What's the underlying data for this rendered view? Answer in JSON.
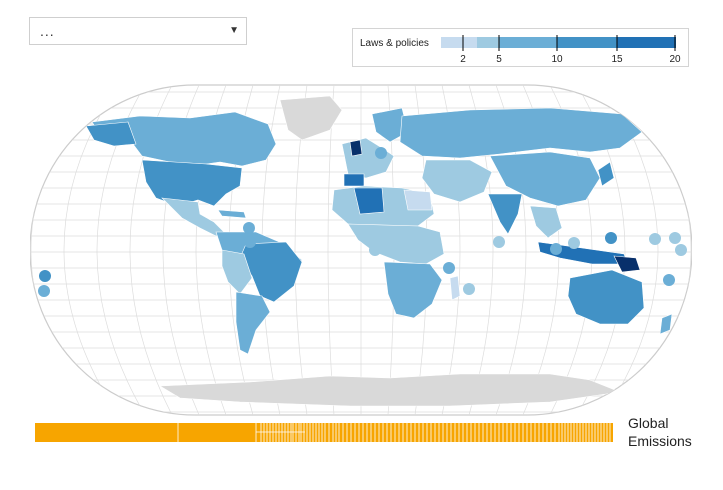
{
  "selector": {
    "value": "..."
  },
  "legend": {
    "title": "Laws & policies",
    "ticks": [
      2,
      5,
      10,
      15,
      20
    ],
    "colors": [
      "#c6dbef",
      "#9ecae1",
      "#6baed6",
      "#4292c6",
      "#2171b5"
    ]
  },
  "map": {
    "ocean_color": "#ffffff",
    "grid_color": "#dddddd",
    "nodata_color": "#d9d9d9",
    "island_markers": 16
  },
  "emissions": {
    "label_line1": "Global",
    "label_line2": "Emissions",
    "color": "#f7a500"
  }
}
